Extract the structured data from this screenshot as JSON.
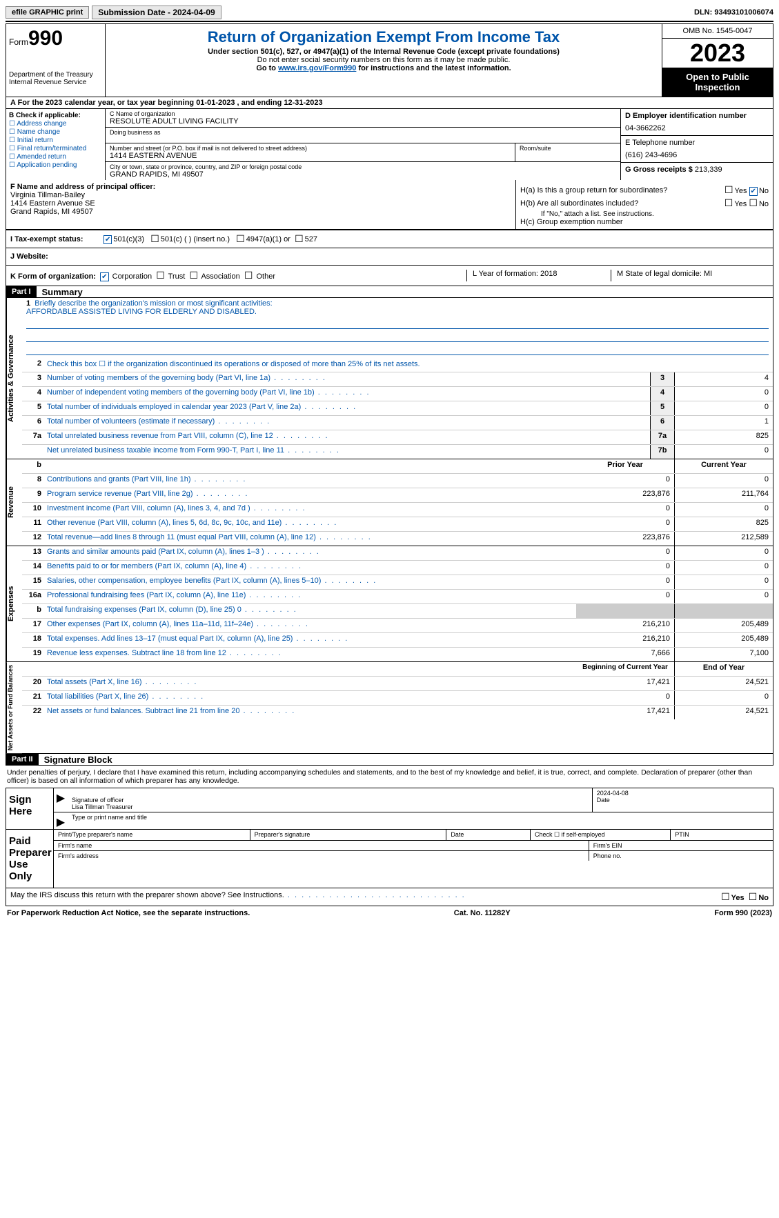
{
  "topbar": {
    "efile": "efile GRAPHIC print",
    "submission": "Submission Date - 2024-04-09",
    "dln": "DLN: 93493101006074"
  },
  "header": {
    "form": "Form",
    "form_no": "990",
    "dept1": "Department of the Treasury",
    "dept2": "Internal Revenue Service",
    "title": "Return of Organization Exempt From Income Tax",
    "sub1": "Under section 501(c), 527, or 4947(a)(1) of the Internal Revenue Code (except private foundations)",
    "sub2": "Do not enter social security numbers on this form as it may be made public.",
    "sub3_pre": "Go to ",
    "sub3_link": "www.irs.gov/Form990",
    "sub3_post": " for instructions and the latest information.",
    "omb": "OMB No. 1545-0047",
    "year": "2023",
    "open": "Open to Public Inspection"
  },
  "row_a": "A For the 2023 calendar year, or tax year beginning 01-01-2023    , and ending 12-31-2023",
  "box_b": {
    "title": "B Check if applicable:",
    "opts": [
      "Address change",
      "Name change",
      "Initial return",
      "Final return/terminated",
      "Amended return",
      "Application pending"
    ]
  },
  "box_c": {
    "name_label": "C Name of organization",
    "name": "RESOLUTE ADULT LIVING FACILITY",
    "dba_label": "Doing business as",
    "dba": "",
    "street_label": "Number and street (or P.O. box if mail is not delivered to street address)",
    "street": "1414 EASTERN AVENUE",
    "room_label": "Room/suite",
    "city_label": "City or town, state or province, country, and ZIP or foreign postal code",
    "city": "GRAND RAPIDS, MI  49507"
  },
  "box_d": {
    "label": "D Employer identification number",
    "val": "04-3662262"
  },
  "box_e": {
    "label": "E Telephone number",
    "val": "(616) 243-4696"
  },
  "box_g": {
    "label": "G Gross receipts $",
    "val": "213,339"
  },
  "box_f": {
    "label": "F  Name and address of principal officer:",
    "l1": "Virginia Tillman-Bailey",
    "l2": "1414 Eastern Avenue SE",
    "l3": "Grand Rapids, MI  49507"
  },
  "box_h": {
    "a_label": "H(a)  Is this a group return for subordinates?",
    "b_label": "H(b)  Are all subordinates included?",
    "b_note": "If \"No,\" attach a list. See instructions.",
    "c_label": "H(c)  Group exemption number",
    "yes": "Yes",
    "no": "No"
  },
  "row_i": {
    "label": "I   Tax-exempt status:",
    "o1": "501(c)(3)",
    "o2": "501(c) (  ) (insert no.)",
    "o3": "4947(a)(1) or",
    "o4": "527"
  },
  "row_j": {
    "label": "J   Website:",
    "right_a": "",
    "right_b": ""
  },
  "row_k": {
    "label": "K Form of organization:",
    "o1": "Corporation",
    "o2": "Trust",
    "o3": "Association",
    "o4": "Other",
    "l_label": "L Year of formation: 2018",
    "m_label": "M State of legal domicile: MI"
  },
  "part1": {
    "header": "Part I",
    "title": "Summary"
  },
  "mission": {
    "label": "Briefly describe the organization's mission or most significant activities:",
    "text": "AFFORDABLE ASSISTED LIVING FOR ELDERLY AND DISABLED."
  },
  "line2": "Check this box  ☐  if the organization discontinued its operations or disposed of more than 25% of its net assets.",
  "gov_lines": [
    {
      "n": "3",
      "d": "Number of voting members of the governing body (Part VI, line 1a)",
      "b": "3",
      "v": "4"
    },
    {
      "n": "4",
      "d": "Number of independent voting members of the governing body (Part VI, line 1b)",
      "b": "4",
      "v": "0"
    },
    {
      "n": "5",
      "d": "Total number of individuals employed in calendar year 2023 (Part V, line 2a)",
      "b": "5",
      "v": "0"
    },
    {
      "n": "6",
      "d": "Total number of volunteers (estimate if necessary)",
      "b": "6",
      "v": "1"
    },
    {
      "n": "7a",
      "d": "Total unrelated business revenue from Part VIII, column (C), line 12",
      "b": "7a",
      "v": "825"
    },
    {
      "n": "",
      "d": "Net unrelated business taxable income from Form 990-T, Part I, line 11",
      "b": "7b",
      "v": "0"
    }
  ],
  "rev_header": {
    "b": "b",
    "py": "Prior Year",
    "cy": "Current Year"
  },
  "rev_lines": [
    {
      "n": "8",
      "d": "Contributions and grants (Part VIII, line 1h)",
      "py": "0",
      "cy": "0"
    },
    {
      "n": "9",
      "d": "Program service revenue (Part VIII, line 2g)",
      "py": "223,876",
      "cy": "211,764"
    },
    {
      "n": "10",
      "d": "Investment income (Part VIII, column (A), lines 3, 4, and 7d )",
      "py": "0",
      "cy": "0"
    },
    {
      "n": "11",
      "d": "Other revenue (Part VIII, column (A), lines 5, 6d, 8c, 9c, 10c, and 11e)",
      "py": "0",
      "cy": "825"
    },
    {
      "n": "12",
      "d": "Total revenue—add lines 8 through 11 (must equal Part VIII, column (A), line 12)",
      "py": "223,876",
      "cy": "212,589"
    }
  ],
  "exp_lines": [
    {
      "n": "13",
      "d": "Grants and similar amounts paid (Part IX, column (A), lines 1–3 )",
      "py": "0",
      "cy": "0"
    },
    {
      "n": "14",
      "d": "Benefits paid to or for members (Part IX, column (A), line 4)",
      "py": "0",
      "cy": "0"
    },
    {
      "n": "15",
      "d": "Salaries, other compensation, employee benefits (Part IX, column (A), lines 5–10)",
      "py": "0",
      "cy": "0"
    },
    {
      "n": "16a",
      "d": "Professional fundraising fees (Part IX, column (A), line 11e)",
      "py": "0",
      "cy": "0"
    },
    {
      "n": "b",
      "d": "Total fundraising expenses (Part IX, column (D), line 25) 0",
      "py": "grey",
      "cy": "grey"
    },
    {
      "n": "17",
      "d": "Other expenses (Part IX, column (A), lines 11a–11d, 11f–24e)",
      "py": "216,210",
      "cy": "205,489"
    },
    {
      "n": "18",
      "d": "Total expenses. Add lines 13–17 (must equal Part IX, column (A), line 25)",
      "py": "216,210",
      "cy": "205,489"
    },
    {
      "n": "19",
      "d": "Revenue less expenses. Subtract line 18 from line 12",
      "py": "7,666",
      "cy": "7,100"
    }
  ],
  "na_header": {
    "py": "Beginning of Current Year",
    "cy": "End of Year"
  },
  "na_lines": [
    {
      "n": "20",
      "d": "Total assets (Part X, line 16)",
      "py": "17,421",
      "cy": "24,521"
    },
    {
      "n": "21",
      "d": "Total liabilities (Part X, line 26)",
      "py": "0",
      "cy": "0"
    },
    {
      "n": "22",
      "d": "Net assets or fund balances. Subtract line 21 from line 20",
      "py": "17,421",
      "cy": "24,521"
    }
  ],
  "vert": {
    "gov": "Activities & Governance",
    "rev": "Revenue",
    "exp": "Expenses",
    "na": "Net Assets or Fund Balances"
  },
  "part2": {
    "header": "Part II",
    "title": "Signature Block"
  },
  "declaration": "Under penalties of perjury, I declare that I have examined this return, including accompanying schedules and statements, and to the best of my knowledge and belief, it is true, correct, and complete. Declaration of preparer (other than officer) is based on all information of which preparer has any knowledge.",
  "sign": {
    "left": "Sign Here",
    "date": "2024-04-08",
    "sig_label": "Signature of officer",
    "name": "Lisa Tillman Treasurer",
    "type_label": "Type or print name and title",
    "date_label": "Date"
  },
  "paid": {
    "left": "Paid Preparer Use Only",
    "c1": "Print/Type preparer's name",
    "c2": "Preparer's signature",
    "c3": "Date",
    "c4": "Check ☐ if self-employed",
    "c5": "PTIN",
    "r2a": "Firm's name",
    "r2b": "Firm's EIN",
    "r3a": "Firm's address",
    "r3b": "Phone no."
  },
  "discuss": "May the IRS discuss this return with the preparer shown above? See Instructions.",
  "footer": {
    "left": "For Paperwork Reduction Act Notice, see the separate instructions.",
    "mid": "Cat. No. 11282Y",
    "right": "Form 990 (2023)"
  }
}
